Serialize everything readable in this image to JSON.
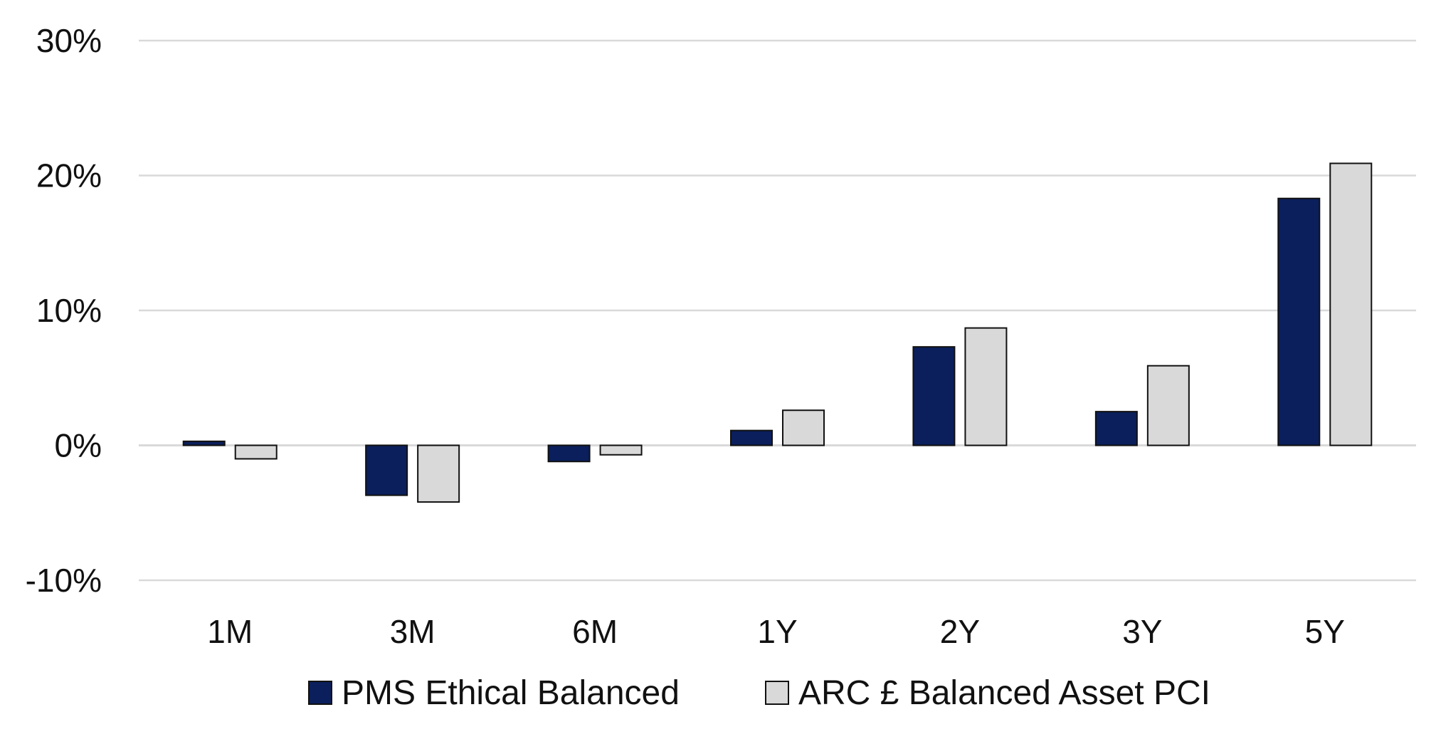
{
  "chart_data": {
    "type": "bar",
    "categories": [
      "1M",
      "3M",
      "6M",
      "1Y",
      "2Y",
      "3Y",
      "5Y"
    ],
    "series": [
      {
        "name": "PMS Ethical Balanced",
        "color": "#0a1f5c",
        "values": [
          0.3,
          -3.7,
          -1.2,
          1.1,
          7.3,
          2.5,
          18.3
        ]
      },
      {
        "name": "ARC £ Balanced Asset PCI",
        "color": "#d9d9d9",
        "values": [
          -1.0,
          -4.2,
          -0.7,
          2.6,
          8.7,
          5.9,
          20.9
        ]
      }
    ],
    "ylim": [
      -10,
      30
    ],
    "yticks": [
      30,
      20,
      10,
      0,
      -10
    ],
    "ytick_labels": [
      "30%",
      "20%",
      "10%",
      "0%",
      "-10%"
    ],
    "grid": true,
    "legend_position": "bottom",
    "title": "",
    "xlabel": "",
    "ylabel": ""
  }
}
